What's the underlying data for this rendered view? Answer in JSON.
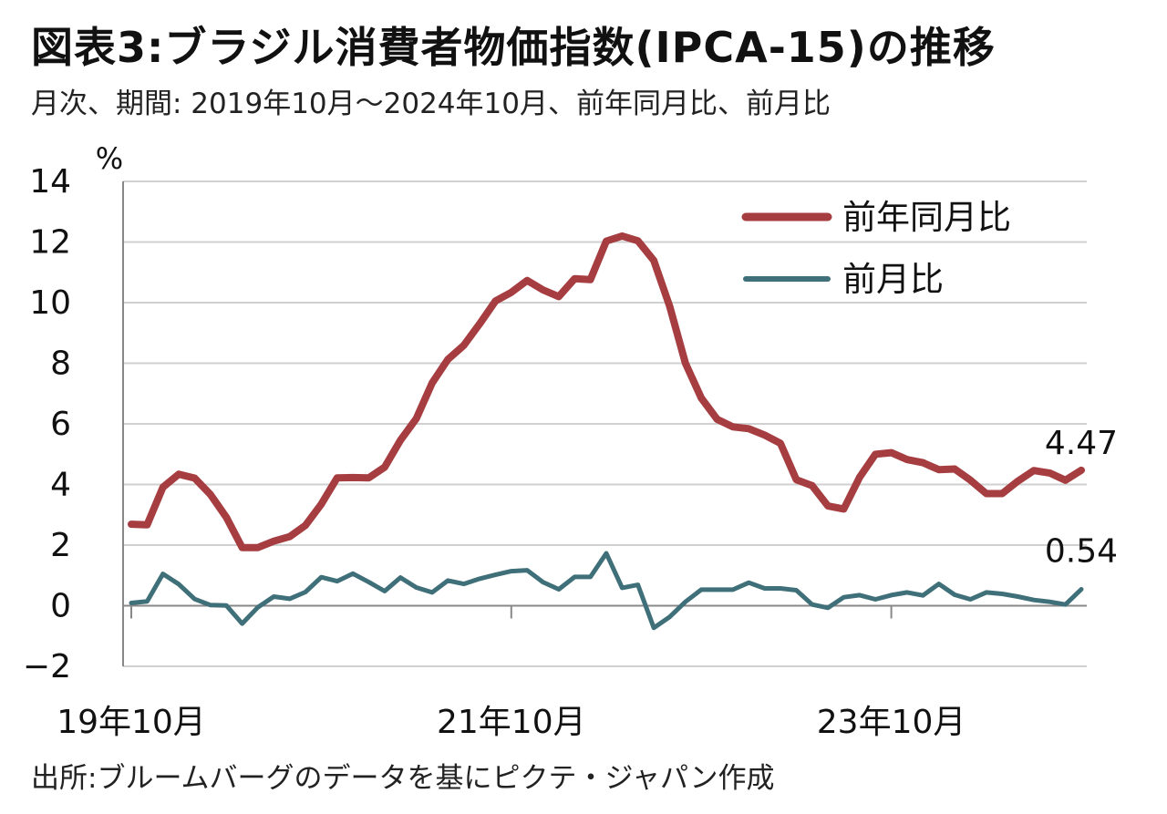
{
  "header": {
    "title": "図表3:ブラジル消費者物価指数(IPCA-15)の推移",
    "subtitle": "月次、期間: 2019年10月～2024年10月、前年同月比、前月比"
  },
  "footer": {
    "source": "出所:ブルームバーグのデータを基にピクテ・ジャパン作成"
  },
  "colors": {
    "yoy": "#a63d40",
    "mom": "#3f6f78",
    "grid": "#d0d0d0",
    "axis": "#888888"
  },
  "chart_data": {
    "type": "line",
    "ylabel": "%",
    "ylim": [
      -2,
      14
    ],
    "yticks": [
      -2,
      0,
      2,
      4,
      6,
      8,
      10,
      12,
      14
    ],
    "ytick_labels": [
      "−2",
      "0",
      "2",
      "4",
      "6",
      "8",
      "10",
      "12",
      "14"
    ],
    "x_range": [
      "2019-10",
      "2024-10"
    ],
    "xtick_labels": [
      {
        "label": "19年10月",
        "index": 0
      },
      {
        "label": "21年10月",
        "index": 24
      },
      {
        "label": "23年10月",
        "index": 48
      }
    ],
    "grid": true,
    "legend": "top-right",
    "series": [
      {
        "name": "前年同月比",
        "color": "#a63d40",
        "end_label": "4.47",
        "values": [
          2.69,
          2.67,
          3.91,
          4.34,
          4.21,
          3.67,
          2.92,
          1.92,
          1.92,
          2.13,
          2.28,
          2.65,
          3.35,
          4.22,
          4.23,
          4.22,
          4.57,
          5.46,
          6.17,
          7.35,
          8.13,
          8.59,
          9.3,
          10.05,
          10.34,
          10.73,
          10.42,
          10.2,
          10.79,
          10.76,
          12.03,
          12.2,
          12.04,
          11.39,
          9.88,
          8.0,
          6.85,
          6.15,
          5.9,
          5.84,
          5.63,
          5.36,
          4.16,
          3.96,
          3.29,
          3.19,
          4.24,
          5.0,
          5.05,
          4.82,
          4.72,
          4.49,
          4.51,
          4.14,
          3.7,
          3.7,
          4.11,
          4.46,
          4.38,
          4.14,
          4.47
        ]
      },
      {
        "name": "前月比",
        "color": "#3f6f78",
        "end_label": "0.54",
        "values": [
          0.09,
          0.14,
          1.05,
          0.71,
          0.22,
          0.02,
          0.01,
          -0.59,
          -0.05,
          0.3,
          0.23,
          0.45,
          0.94,
          0.81,
          1.06,
          0.78,
          0.48,
          0.93,
          0.6,
          0.44,
          0.83,
          0.72,
          0.89,
          1.02,
          1.14,
          1.17,
          0.78,
          0.54,
          0.95,
          0.95,
          1.73,
          0.59,
          0.69,
          -0.73,
          -0.37,
          0.13,
          0.53,
          0.53,
          0.53,
          0.76,
          0.57,
          0.57,
          0.51,
          0.04,
          -0.07,
          0.28,
          0.35,
          0.21,
          0.35,
          0.44,
          0.34,
          0.72,
          0.36,
          0.21,
          0.44,
          0.39,
          0.3,
          0.19,
          0.13,
          0.04,
          0.54
        ]
      }
    ]
  }
}
